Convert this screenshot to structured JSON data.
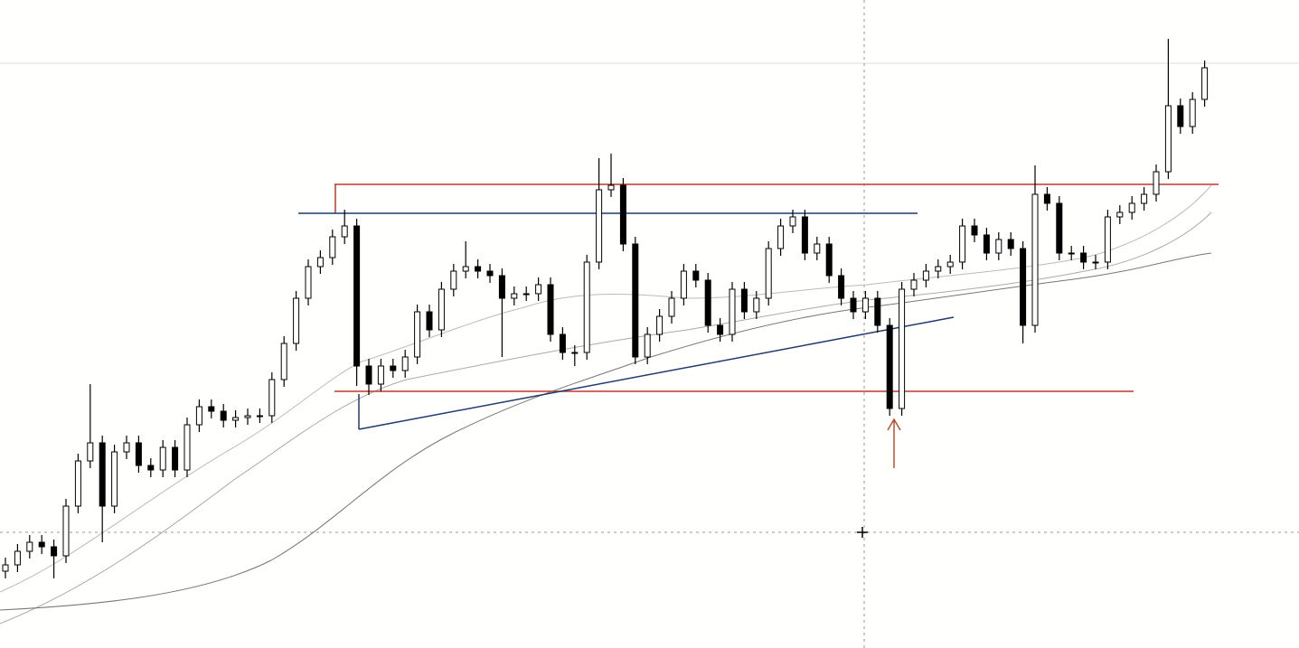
{
  "chart_data": {
    "type": "candlestick",
    "open": [
      85,
      92,
      107,
      117,
      112,
      102,
      157,
      207,
      227,
      157,
      217,
      227,
      202,
      197,
      222,
      197,
      247,
      267,
      262,
      252,
      255,
      257,
      257,
      297,
      337,
      387,
      422,
      432,
      455,
      467,
      312,
      292,
      312,
      307,
      322,
      372,
      352,
      397,
      417,
      422,
      417,
      412,
      387,
      392,
      392,
      402,
      347,
      327,
      327,
      427,
      507,
      512,
      447,
      322,
      347,
      367,
      387,
      417,
      407,
      357,
      347,
      397,
      372,
      387,
      442,
      467,
      477,
      437,
      447,
      412,
      387,
      372,
      387,
      357,
      265,
      397,
      407,
      417,
      422,
      427,
      467,
      457,
      437,
      452,
      442,
      357,
      502,
      492,
      437,
      437,
      427,
      427,
      477,
      482,
      492,
      502,
      527,
      600,
      577,
      607
    ],
    "high": [
      100,
      115,
      125,
      125,
      120,
      165,
      215,
      292,
      235,
      225,
      235,
      235,
      210,
      230,
      230,
      255,
      275,
      275,
      270,
      263,
      265,
      265,
      305,
      345,
      395,
      430,
      440,
      463,
      485,
      475,
      320,
      320,
      320,
      330,
      380,
      380,
      405,
      425,
      450,
      430,
      425,
      420,
      400,
      400,
      410,
      410,
      355,
      335,
      435,
      542,
      547,
      520,
      455,
      355,
      375,
      395,
      425,
      425,
      415,
      365,
      405,
      405,
      395,
      450,
      475,
      485,
      485,
      455,
      455,
      420,
      395,
      395,
      395,
      365,
      405,
      415,
      425,
      430,
      435,
      475,
      475,
      465,
      460,
      460,
      450,
      534,
      510,
      500,
      445,
      445,
      435,
      485,
      490,
      500,
      510,
      535,
      674,
      608,
      615,
      650
    ],
    "low": [
      77,
      84,
      99,
      104,
      77,
      94,
      149,
      199,
      117,
      149,
      209,
      194,
      189,
      189,
      189,
      189,
      239,
      254,
      244,
      244,
      247,
      249,
      249,
      289,
      329,
      379,
      414,
      424,
      447,
      290,
      280,
      284,
      299,
      299,
      314,
      344,
      344,
      389,
      409,
      409,
      404,
      322,
      379,
      384,
      384,
      339,
      319,
      312,
      319,
      419,
      499,
      439,
      314,
      314,
      339,
      359,
      379,
      399,
      349,
      339,
      339,
      364,
      364,
      379,
      434,
      459,
      429,
      429,
      404,
      379,
      364,
      364,
      349,
      257,
      257,
      389,
      399,
      409,
      414,
      419,
      449,
      429,
      429,
      434,
      337,
      349,
      484,
      429,
      429,
      419,
      419,
      419,
      469,
      474,
      484,
      494,
      519,
      569,
      569,
      599
    ],
    "close": [
      92,
      107,
      117,
      112,
      102,
      157,
      207,
      227,
      157,
      217,
      227,
      202,
      197,
      222,
      197,
      247,
      267,
      262,
      252,
      255,
      257,
      257,
      297,
      337,
      387,
      422,
      432,
      455,
      467,
      312,
      292,
      312,
      307,
      322,
      372,
      352,
      397,
      417,
      422,
      417,
      412,
      387,
      392,
      392,
      402,
      347,
      327,
      327,
      427,
      507,
      512,
      447,
      322,
      347,
      367,
      387,
      417,
      407,
      357,
      347,
      397,
      372,
      387,
      442,
      467,
      477,
      437,
      447,
      412,
      387,
      372,
      387,
      357,
      265,
      397,
      407,
      417,
      422,
      427,
      467,
      457,
      437,
      452,
      442,
      357,
      502,
      492,
      437,
      437,
      427,
      427,
      477,
      482,
      492,
      502,
      527,
      600,
      577,
      607,
      642
    ],
    "ylim": [
      0,
      717
    ],
    "up_color": "#ffffff",
    "down_color": "#000000"
  }
}
